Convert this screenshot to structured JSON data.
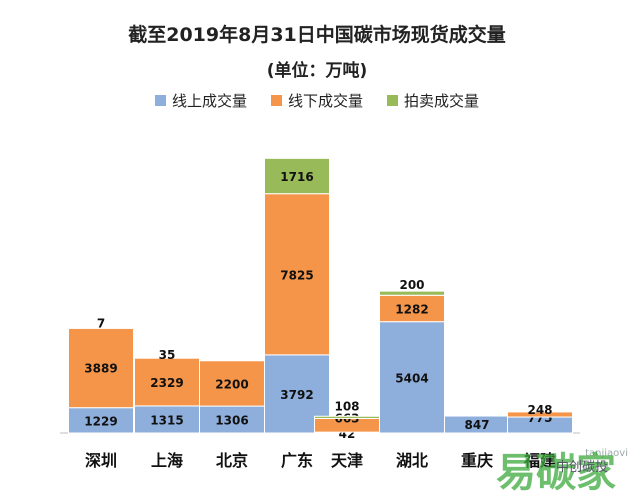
{
  "chart_data": {
    "type": "bar",
    "stacked": true,
    "title": "截至2019年8月31日中国碳市场现货成交量",
    "subtitle": "(单位：万吨)",
    "categories": [
      "深圳",
      "上海",
      "北京",
      "广东",
      "天津",
      "湖北",
      "重庆",
      "福建"
    ],
    "series": [
      {
        "name": "线上成交量",
        "color": "#8eaedc",
        "values": [
          1229,
          1315,
          1306,
          3792,
          42,
          5404,
          847,
          775
        ],
        "labels": [
          "1229",
          "1315",
          "1306",
          "3792",
          "42",
          "5404",
          "847",
          "775"
        ]
      },
      {
        "name": "线下成交量",
        "color": "#f4954a",
        "values": [
          3889,
          2329,
          2200,
          7825,
          663,
          1282,
          25,
          248
        ],
        "labels": [
          "3889",
          "2329",
          "2200",
          "7825",
          "663",
          "1282",
          "",
          "248"
        ]
      },
      {
        "name": "拍卖成交量",
        "color": "#99ba58",
        "values": [
          7,
          35,
          0,
          1716,
          108,
          200,
          0,
          0
        ],
        "labels": [
          "7",
          "35",
          "",
          "1716",
          "108",
          "200",
          "",
          ""
        ]
      }
    ],
    "legend_position": "top",
    "grid": false
  },
  "watermark": {
    "brand": "易碳家",
    "text": "中创碳投",
    "url": "tanjiaovi"
  }
}
